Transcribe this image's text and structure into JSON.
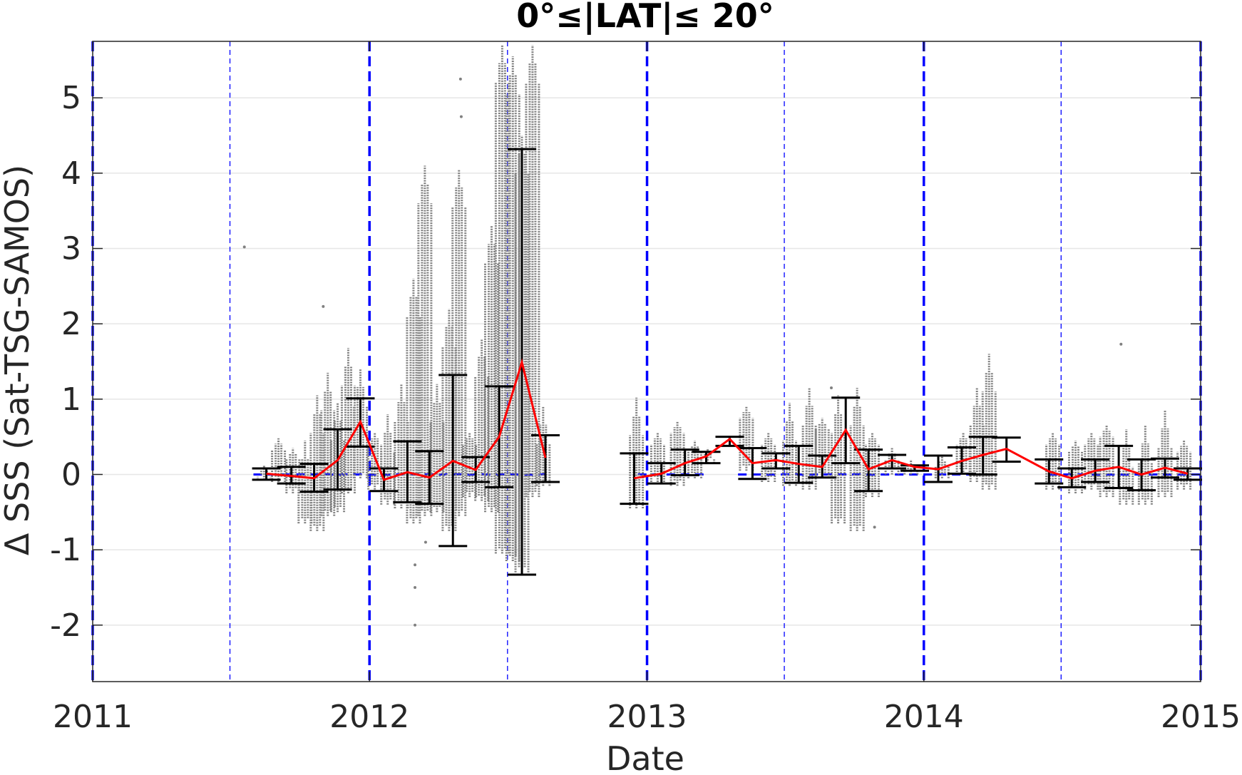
{
  "chart_data": {
    "type": "scatter",
    "title": "0°≤|LAT|≤ 20°",
    "xlabel": "Date",
    "ylabel": "Δ SSS (Sat-TSG-SAMOS)",
    "xlim": [
      "2011-01-01",
      "2015-01-01"
    ],
    "ylim": [
      -2.75,
      5.75
    ],
    "x_ticks": [
      "2011",
      "2012",
      "2013",
      "2014",
      "2015"
    ],
    "y_ticks": [
      -2,
      -1,
      0,
      1,
      2,
      3,
      4,
      5
    ],
    "grid": "horizontal",
    "colors": {
      "scatter": "#808080",
      "errorbar": "#000000",
      "mean_line": "#ff0000",
      "zero_line": "#0000ff",
      "year_lines": "#0000ff",
      "grid": "#e6e6e6",
      "axes": "#262626"
    },
    "year_lines": [
      "2011-01-01",
      "2012-01-01",
      "2013-01-01",
      "2014-01-01",
      "2015-01-01"
    ],
    "half_year_lines": [
      "2011-07-01",
      "2012-07-01",
      "2013-07-01",
      "2014-07-01"
    ],
    "zero_line_segments": [
      {
        "x": [
          "2011-08-01",
          "2012-08-20"
        ],
        "y": 0
      },
      {
        "x": [
          "2012-12-20",
          "2013-03-20"
        ],
        "y": 0
      },
      {
        "x": [
          "2013-05-01",
          "2014-04-01"
        ],
        "y": 0
      },
      {
        "x": [
          "2014-06-15",
          "2015-01-01"
        ],
        "y": 0
      }
    ],
    "series": [
      {
        "type": "line-errorbar",
        "points": [
          {
            "x": "2011-08-18",
            "y": 0.01,
            "lo": -0.07,
            "hi": 0.08
          },
          {
            "x": "2011-09-20",
            "y": -0.02,
            "lo": -0.12,
            "hi": 0.1
          },
          {
            "x": "2011-10-20",
            "y": -0.05,
            "lo": -0.23,
            "hi": 0.14
          },
          {
            "x": "2011-11-20",
            "y": 0.19,
            "lo": -0.2,
            "hi": 0.6
          },
          {
            "x": "2011-12-20",
            "y": 0.7,
            "lo": 0.37,
            "hi": 1.01
          },
          {
            "x": "2012-01-20",
            "y": -0.07,
            "lo": -0.22,
            "hi": 0.08
          },
          {
            "x": "2012-02-20",
            "y": 0.03,
            "lo": -0.37,
            "hi": 0.44
          },
          {
            "x": "2012-03-20",
            "y": -0.04,
            "lo": -0.39,
            "hi": 0.31
          },
          {
            "x": "2012-04-20",
            "y": 0.18,
            "lo": -0.95,
            "hi": 1.32
          },
          {
            "x": "2012-05-20",
            "y": 0.06,
            "lo": -0.1,
            "hi": 0.23
          },
          {
            "x": "2012-06-20",
            "y": 0.5,
            "lo": -0.17,
            "hi": 1.17
          },
          {
            "x": "2012-07-20",
            "y": 1.49,
            "lo": -1.33,
            "hi": 4.32
          },
          {
            "x": "2012-08-20",
            "y": 0.22,
            "lo": -0.1,
            "hi": 0.52
          },
          {
            "x": "2012-12-15",
            "y": -0.05,
            "lo": -0.39,
            "hi": 0.28
          },
          {
            "x": "2013-01-20",
            "y": 0.01,
            "lo": -0.12,
            "hi": 0.15
          },
          {
            "x": "2013-02-20",
            "y": 0.15,
            "lo": -0.01,
            "hi": 0.33
          },
          {
            "x": "2013-03-20",
            "y": 0.24,
            "lo": 0.15,
            "hi": 0.3
          },
          {
            "x": "2013-04-20",
            "y": 0.47,
            "lo": 0.38,
            "hi": 0.5
          },
          {
            "x": "2013-05-20",
            "y": 0.15,
            "lo": -0.06,
            "hi": 0.35
          },
          {
            "x": "2013-06-20",
            "y": 0.19,
            "lo": 0.08,
            "hi": 0.28
          },
          {
            "x": "2013-07-20",
            "y": 0.14,
            "lo": -0.11,
            "hi": 0.38
          },
          {
            "x": "2013-08-20",
            "y": 0.1,
            "lo": -0.04,
            "hi": 0.25
          },
          {
            "x": "2013-09-20",
            "y": 0.59,
            "lo": 0.15,
            "hi": 1.02
          },
          {
            "x": "2013-10-20",
            "y": 0.07,
            "lo": -0.22,
            "hi": 0.33
          },
          {
            "x": "2013-11-20",
            "y": 0.19,
            "lo": 0.08,
            "hi": 0.26
          },
          {
            "x": "2013-12-20",
            "y": 0.1,
            "lo": 0.05,
            "hi": 0.12
          },
          {
            "x": "2014-01-20",
            "y": 0.07,
            "lo": -0.1,
            "hi": 0.25
          },
          {
            "x": "2014-02-20",
            "y": 0.18,
            "lo": 0.01,
            "hi": 0.36
          },
          {
            "x": "2014-03-20",
            "y": 0.26,
            "lo": 0.0,
            "hi": 0.5
          },
          {
            "x": "2014-04-20",
            "y": 0.34,
            "lo": 0.17,
            "hi": 0.49
          },
          {
            "x": "2014-06-15",
            "y": 0.04,
            "lo": -0.12,
            "hi": 0.2
          },
          {
            "x": "2014-07-15",
            "y": -0.05,
            "lo": -0.17,
            "hi": 0.08
          },
          {
            "x": "2014-08-15",
            "y": 0.05,
            "lo": -0.1,
            "hi": 0.2
          },
          {
            "x": "2014-09-15",
            "y": 0.1,
            "lo": -0.18,
            "hi": 0.38
          },
          {
            "x": "2014-10-15",
            "y": 0.0,
            "lo": -0.21,
            "hi": 0.2
          },
          {
            "x": "2014-11-15",
            "y": 0.09,
            "lo": -0.04,
            "hi": 0.21
          },
          {
            "x": "2014-12-15",
            "y": 0.01,
            "lo": -0.07,
            "hi": 0.08
          }
        ]
      },
      {
        "type": "scatter-columns",
        "columns": [
          {
            "x": "2011-08-15",
            "lo": -0.12,
            "hi": 0.12
          },
          {
            "x": "2011-09-03",
            "lo": -0.15,
            "hi": 0.48
          },
          {
            "x": "2011-09-22",
            "lo": -0.3,
            "hi": 0.35
          },
          {
            "x": "2011-10-08",
            "lo": -0.7,
            "hi": 0.45
          },
          {
            "x": "2011-10-24",
            "lo": -0.8,
            "hi": 1.05
          },
          {
            "x": "2011-11-07",
            "lo": -0.6,
            "hi": 1.35
          },
          {
            "x": "2011-11-20",
            "lo": -0.55,
            "hi": 0.95
          },
          {
            "x": "2011-12-04",
            "lo": -0.3,
            "hi": 1.68
          },
          {
            "x": "2011-12-20",
            "lo": -0.1,
            "hi": 1.4
          },
          {
            "x": "2012-01-08",
            "lo": -0.25,
            "hi": 0.55
          },
          {
            "x": "2012-01-25",
            "lo": -0.45,
            "hi": 0.8
          },
          {
            "x": "2012-02-12",
            "lo": -0.5,
            "hi": 1.2
          },
          {
            "x": "2012-02-28",
            "lo": -0.7,
            "hi": 2.6
          },
          {
            "x": "2012-03-14",
            "lo": -0.6,
            "hi": 4.1
          },
          {
            "x": "2012-03-30",
            "lo": -0.55,
            "hi": 1.2
          },
          {
            "x": "2012-04-15",
            "lo": -0.8,
            "hi": 2.2
          },
          {
            "x": "2012-04-28",
            "lo": -0.6,
            "hi": 4.05
          },
          {
            "x": "2012-05-12",
            "lo": -0.35,
            "hi": 0.55
          },
          {
            "x": "2012-05-28",
            "lo": -0.4,
            "hi": 1.8
          },
          {
            "x": "2012-06-10",
            "lo": -0.55,
            "hi": 3.3
          },
          {
            "x": "2012-06-24",
            "lo": -1.1,
            "hi": 5.7
          },
          {
            "x": "2012-07-08",
            "lo": -1.2,
            "hi": 5.55
          },
          {
            "x": "2012-07-20",
            "lo": -1.35,
            "hi": 4.5
          },
          {
            "x": "2012-08-03",
            "lo": -0.35,
            "hi": 5.7
          },
          {
            "x": "2012-08-17",
            "lo": -0.2,
            "hi": 0.9
          },
          {
            "x": "2012-12-18",
            "lo": -0.5,
            "hi": 1.02
          },
          {
            "x": "2013-01-15",
            "lo": -0.15,
            "hi": 0.55
          },
          {
            "x": "2013-02-10",
            "lo": -0.2,
            "hi": 0.7
          },
          {
            "x": "2013-03-05",
            "lo": -0.1,
            "hi": 0.45
          },
          {
            "x": "2013-03-22",
            "lo": 0.1,
            "hi": 0.35
          },
          {
            "x": "2013-05-12",
            "lo": 0.0,
            "hi": 0.9
          },
          {
            "x": "2013-06-10",
            "lo": -0.15,
            "hi": 0.55
          },
          {
            "x": "2013-07-08",
            "lo": -0.2,
            "hi": 0.95
          },
          {
            "x": "2013-08-03",
            "lo": -0.25,
            "hi": 1.15
          },
          {
            "x": "2013-08-20",
            "lo": -0.1,
            "hi": 0.75
          },
          {
            "x": "2013-09-10",
            "lo": -0.7,
            "hi": 1.05
          },
          {
            "x": "2013-10-05",
            "lo": -0.8,
            "hi": 1.15
          },
          {
            "x": "2013-10-25",
            "lo": -0.35,
            "hi": 0.55
          },
          {
            "x": "2013-11-20",
            "lo": -0.05,
            "hi": 0.35
          },
          {
            "x": "2013-12-15",
            "lo": -0.05,
            "hi": 0.2
          },
          {
            "x": "2014-01-25",
            "lo": -0.1,
            "hi": 0.25
          },
          {
            "x": "2014-02-22",
            "lo": -0.05,
            "hi": 0.55
          },
          {
            "x": "2014-03-12",
            "lo": -0.15,
            "hi": 1.15
          },
          {
            "x": "2014-03-28",
            "lo": -0.25,
            "hi": 1.6
          },
          {
            "x": "2014-06-20",
            "lo": -0.25,
            "hi": 0.55
          },
          {
            "x": "2014-07-20",
            "lo": -0.3,
            "hi": 0.45
          },
          {
            "x": "2014-08-10",
            "lo": -0.25,
            "hi": 0.55
          },
          {
            "x": "2014-08-30",
            "lo": -0.35,
            "hi": 0.65
          },
          {
            "x": "2014-09-25",
            "lo": -0.45,
            "hi": 0.6
          },
          {
            "x": "2014-10-20",
            "lo": -0.45,
            "hi": 0.65
          },
          {
            "x": "2014-11-15",
            "lo": -0.35,
            "hi": 0.85
          },
          {
            "x": "2014-12-10",
            "lo": -0.25,
            "hi": 0.45
          }
        ],
        "outliers": [
          {
            "x": "2011-07-20",
            "y": 3.02
          },
          {
            "x": "2011-11-01",
            "y": 2.23
          },
          {
            "x": "2012-05-01",
            "y": 4.75
          },
          {
            "x": "2012-04-30",
            "y": 5.25
          },
          {
            "x": "2012-03-01",
            "y": -1.5
          },
          {
            "x": "2012-03-01",
            "y": -2.0
          },
          {
            "x": "2012-03-15",
            "y": -0.9
          },
          {
            "x": "2012-03-01",
            "y": -1.2
          },
          {
            "x": "2014-09-18",
            "y": 1.73
          },
          {
            "x": "2013-10-28",
            "y": -0.7
          },
          {
            "x": "2013-09-01",
            "y": 1.15
          }
        ]
      }
    ]
  }
}
